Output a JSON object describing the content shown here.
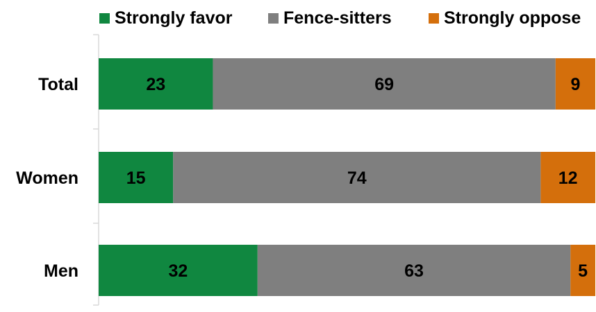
{
  "chart_data": {
    "type": "bar",
    "orientation": "horizontal",
    "stacked": true,
    "categories": [
      "Total",
      "Women",
      "Men"
    ],
    "series": [
      {
        "name": "Strongly favor",
        "color": "#108740",
        "values": [
          23,
          15,
          32
        ]
      },
      {
        "name": "Fence-sitters",
        "color": "#7f7f7f",
        "values": [
          69,
          74,
          63
        ]
      },
      {
        "name": "Strongly oppose",
        "color": "#d46f0c",
        "values": [
          9,
          12,
          5
        ]
      }
    ],
    "data_labels": true,
    "legend_position": "top",
    "grid": false,
    "xlim": [
      0,
      100
    ]
  }
}
